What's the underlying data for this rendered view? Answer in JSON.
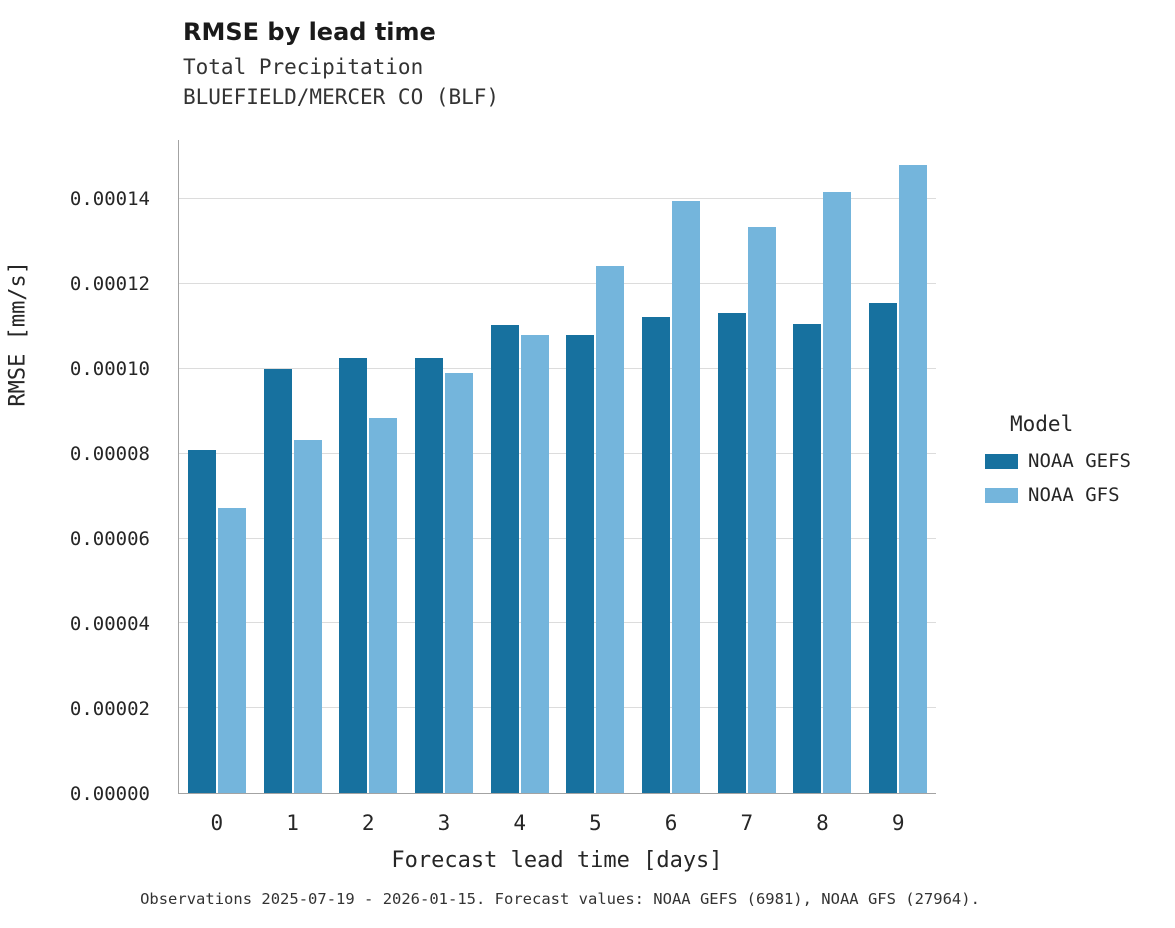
{
  "header": {
    "title": "RMSE by lead time",
    "subtitle_line1": "Total Precipitation",
    "subtitle_line2": "BLUEFIELD/MERCER CO (BLF)"
  },
  "legend": {
    "title": "Model"
  },
  "caption": "Observations 2025-07-19 - 2026-01-15. Forecast values: NOAA GEFS (6981), NOAA GFS (27964).",
  "chart_data": {
    "type": "bar",
    "title": "RMSE by lead time",
    "subtitle": "Total Precipitation — BLUEFIELD/MERCER CO (BLF)",
    "xlabel": "Forecast lead time [days]",
    "ylabel": "RMSE [mm/s]",
    "categories": [
      "0",
      "1",
      "2",
      "3",
      "4",
      "5",
      "6",
      "7",
      "8",
      "9"
    ],
    "series": [
      {
        "name": "NOAA GEFS",
        "color": "#17719f",
        "values": [
          8.1e-05,
          0.0001,
          0.0001025,
          0.0001027,
          0.0001103,
          0.000108,
          0.0001122,
          0.0001132,
          0.0001107,
          0.0001155
        ]
      },
      {
        "name": "NOAA GFS",
        "color": "#74b5dc",
        "values": [
          6.73e-05,
          8.32e-05,
          8.85e-05,
          9.9e-05,
          0.000108,
          0.0001243,
          0.0001395,
          0.0001335,
          0.0001417,
          0.000148
        ]
      }
    ],
    "ylim": [
      0,
      0.000154
    ],
    "yticks": [
      {
        "value": 0.0,
        "label": "0.00000"
      },
      {
        "value": 2e-05,
        "label": "0.00002"
      },
      {
        "value": 4e-05,
        "label": "0.00004"
      },
      {
        "value": 6e-05,
        "label": "0.00006"
      },
      {
        "value": 8e-05,
        "label": "0.00008"
      },
      {
        "value": 0.0001,
        "label": "0.00010"
      },
      {
        "value": 0.00012,
        "label": "0.00012"
      },
      {
        "value": 0.00014,
        "label": "0.00014"
      }
    ],
    "grid": "horizontal",
    "legend_position": "right"
  }
}
